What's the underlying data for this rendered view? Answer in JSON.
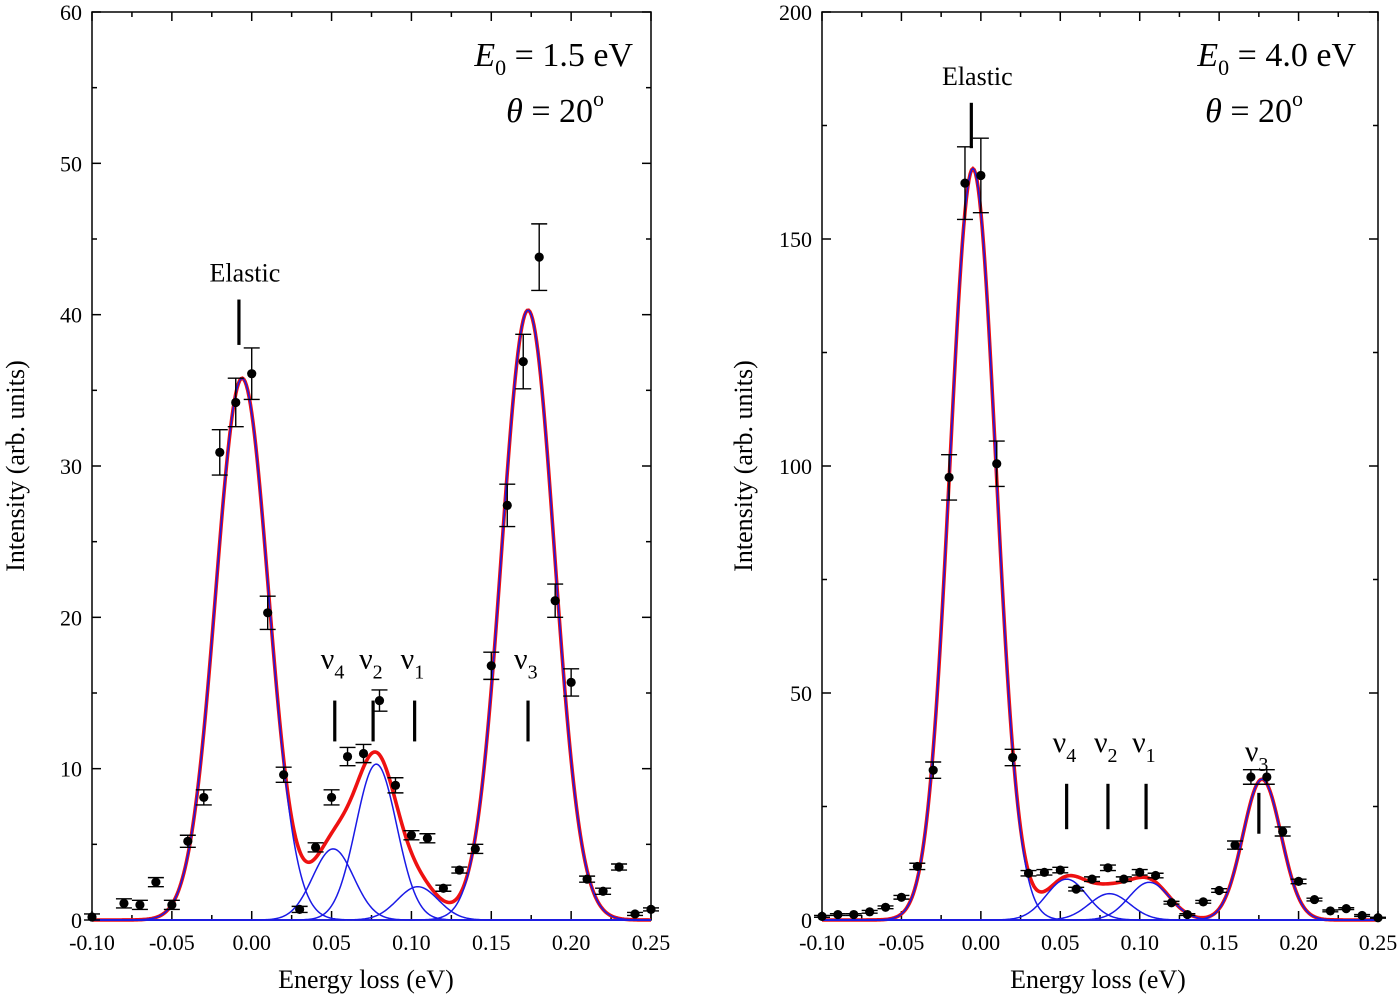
{
  "chart_data": [
    {
      "type": "scatter",
      "panel": "left",
      "xlabel": "Energy loss (eV)",
      "ylabel": "Intensity (arb. units)",
      "xlim": [
        -0.1,
        0.25
      ],
      "ylim": [
        0,
        60
      ],
      "xticks": [
        -0.1,
        -0.05,
        0.0,
        0.05,
        0.1,
        0.15,
        0.2,
        0.25
      ],
      "xtick_labels": [
        "-0.10",
        "-0.05",
        "0.00",
        "0.05",
        "0.10",
        "0.15",
        "0.20",
        "0.25"
      ],
      "yticks": [
        0,
        10,
        20,
        30,
        40,
        50,
        60
      ],
      "ytick_labels": [
        "0",
        "10",
        "20",
        "30",
        "40",
        "50",
        "60"
      ],
      "grid": false,
      "parameters": {
        "energy_symbol": "E",
        "energy_sub": "0",
        "energy_value": " = 1.5 eV",
        "angle_symbol": "θ",
        "angle_value": " = 20",
        "angle_sup": "o"
      },
      "series": [
        {
          "kind": "points",
          "color": "#000000",
          "x": [
            -0.1,
            -0.08,
            -0.07,
            -0.06,
            -0.05,
            -0.04,
            -0.03,
            -0.02,
            -0.01,
            0.0,
            0.01,
            0.02,
            0.03,
            0.04,
            0.05,
            0.06,
            0.07,
            0.08,
            0.09,
            0.1,
            0.11,
            0.12,
            0.13,
            0.14,
            0.15,
            0.16,
            0.17,
            0.18,
            0.19,
            0.2,
            0.21,
            0.22,
            0.23,
            0.24,
            0.25
          ],
          "y": [
            0.2,
            1.1,
            1.0,
            2.5,
            1.0,
            5.2,
            8.1,
            30.9,
            34.2,
            36.1,
            20.3,
            9.6,
            0.7,
            4.8,
            8.1,
            10.8,
            11.0,
            14.5,
            8.9,
            5.6,
            5.4,
            2.1,
            3.3,
            4.7,
            16.8,
            27.4,
            36.9,
            43.8,
            21.1,
            15.7,
            2.7,
            1.9,
            3.5,
            0.4,
            0.7
          ],
          "yerr": [
            0.2,
            0.3,
            0.3,
            0.3,
            0.3,
            0.4,
            0.5,
            1.5,
            1.6,
            1.7,
            1.1,
            0.5,
            0.2,
            0.3,
            0.5,
            0.6,
            0.6,
            0.7,
            0.5,
            0.3,
            0.3,
            0.2,
            0.2,
            0.3,
            0.9,
            1.4,
            1.8,
            2.2,
            1.1,
            0.9,
            0.2,
            0.2,
            0.2,
            0.1,
            0.1
          ]
        },
        {
          "kind": "fit-total",
          "color": "#ee1111",
          "components": [
            [
              -0.006,
              35.8,
              0.0165
            ],
            [
              0.051,
              4.7,
              0.0128
            ],
            [
              0.078,
              10.3,
              0.0128
            ],
            [
              0.104,
              2.2,
              0.0128
            ],
            [
              0.173,
              40.3,
              0.0165
            ]
          ]
        },
        {
          "kind": "fit-components",
          "color": "#1a1ae6",
          "components": [
            [
              -0.006,
              35.8,
              0.0165
            ],
            [
              0.051,
              4.7,
              0.0128
            ],
            [
              0.078,
              10.3,
              0.0128
            ],
            [
              0.104,
              2.2,
              0.0128
            ],
            [
              0.173,
              40.3,
              0.0165
            ]
          ]
        }
      ],
      "markers": [
        {
          "label": "Elastic",
          "x": -0.008,
          "y_top": 41.0,
          "y_bottom": 38.0
        },
        {
          "label": "ν",
          "sub": "4",
          "x": 0.052,
          "y_top": 14.5,
          "y_bottom": 11.8
        },
        {
          "label": "ν",
          "sub": "2",
          "x": 0.076,
          "y_top": 14.5,
          "y_bottom": 11.8
        },
        {
          "label": "ν",
          "sub": "1",
          "x": 0.102,
          "y_top": 14.5,
          "y_bottom": 11.8
        },
        {
          "label": "ν",
          "sub": "3",
          "x": 0.173,
          "y_top": 14.5,
          "y_bottom": 11.8
        }
      ]
    },
    {
      "type": "scatter",
      "panel": "right",
      "xlabel": "Energy loss (eV)",
      "ylabel": "Intensity (arb. units)",
      "xlim": [
        -0.1,
        0.25
      ],
      "ylim": [
        0,
        200
      ],
      "xticks": [
        -0.1,
        -0.05,
        0.0,
        0.05,
        0.1,
        0.15,
        0.2,
        0.25
      ],
      "xtick_labels": [
        "-0.10",
        "-0.05",
        "0.00",
        "0.05",
        "0.10",
        "0.15",
        "0.20",
        "0.25"
      ],
      "yticks": [
        0,
        50,
        100,
        150,
        200
      ],
      "ytick_labels": [
        "0",
        "50",
        "100",
        "150",
        "200"
      ],
      "grid": false,
      "parameters": {
        "energy_symbol": "E",
        "energy_sub": "0",
        "energy_value": " = 4.0 eV",
        "angle_symbol": "θ",
        "angle_value": " = 20",
        "angle_sup": "o"
      },
      "series": [
        {
          "kind": "points",
          "color": "#000000",
          "x": [
            -0.1,
            -0.09,
            -0.08,
            -0.07,
            -0.06,
            -0.05,
            -0.04,
            -0.03,
            -0.02,
            -0.01,
            0.0,
            0.01,
            0.02,
            0.03,
            0.04,
            0.05,
            0.06,
            0.07,
            0.08,
            0.09,
            0.1,
            0.11,
            0.12,
            0.13,
            0.14,
            0.15,
            0.16,
            0.17,
            0.18,
            0.19,
            0.2,
            0.21,
            0.22,
            0.23,
            0.24,
            0.25
          ],
          "y": [
            0.8,
            1.2,
            1.2,
            1.8,
            2.8,
            5.0,
            11.8,
            33.0,
            97.5,
            162.3,
            164.0,
            100.5,
            35.8,
            10.3,
            10.5,
            11.0,
            6.8,
            9.0,
            11.5,
            9.0,
            10.5,
            9.8,
            3.8,
            1.2,
            4.0,
            6.5,
            16.5,
            31.5,
            31.5,
            19.5,
            8.5,
            4.5,
            2.0,
            2.5,
            1.0,
            0.5
          ],
          "yerr": [
            0.2,
            0.2,
            0.2,
            0.3,
            0.3,
            0.4,
            0.7,
            1.8,
            5.0,
            8.0,
            8.2,
            5.0,
            1.8,
            0.6,
            0.6,
            0.6,
            0.4,
            0.5,
            0.6,
            0.5,
            0.6,
            0.5,
            0.3,
            0.2,
            0.3,
            0.4,
            0.9,
            1.6,
            1.6,
            1.0,
            0.5,
            0.3,
            0.2,
            0.2,
            0.2,
            0.1
          ]
        },
        {
          "kind": "fit-total",
          "color": "#ee1111",
          "components": [
            [
              -0.005,
              165.5,
              0.0145
            ],
            [
              0.054,
              9.0,
              0.0128
            ],
            [
              0.081,
              5.8,
              0.0128
            ],
            [
              0.106,
              8.3,
              0.0128
            ],
            [
              0.177,
              31.0,
              0.012
            ]
          ]
        },
        {
          "kind": "fit-components",
          "color": "#1a1ae6",
          "components": [
            [
              -0.005,
              165.5,
              0.0145
            ],
            [
              0.054,
              9.0,
              0.0128
            ],
            [
              0.081,
              5.8,
              0.0128
            ],
            [
              0.106,
              8.3,
              0.0128
            ],
            [
              0.177,
              31.0,
              0.012
            ]
          ]
        }
      ],
      "markers": [
        {
          "label": "Elastic",
          "x": -0.006,
          "y_top": 180.0,
          "y_bottom": 170.0
        },
        {
          "label": "ν",
          "sub": "4",
          "x": 0.054,
          "y_top": 30.0,
          "y_bottom": 20.0
        },
        {
          "label": "ν",
          "sub": "2",
          "x": 0.08,
          "y_top": 30.0,
          "y_bottom": 20.0
        },
        {
          "label": "ν",
          "sub": "1",
          "x": 0.104,
          "y_top": 30.0,
          "y_bottom": 20.0
        },
        {
          "label": "ν",
          "sub": "3",
          "x": 0.175,
          "y_top": 28.0,
          "y_bottom": 19.0
        }
      ]
    }
  ]
}
